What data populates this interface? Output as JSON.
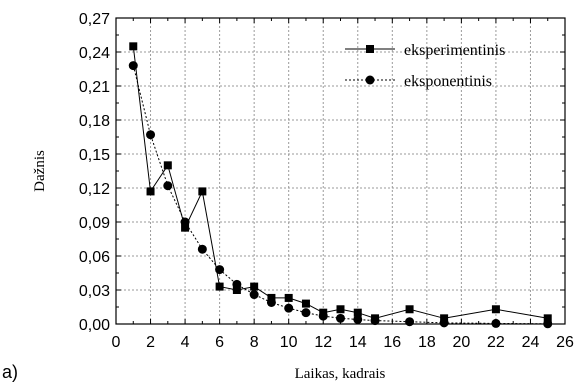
{
  "chart_data": {
    "type": "line",
    "panel_label": "a)",
    "xlabel": "Laikas, kadrais",
    "ylabel": "Dažnis",
    "xlim": [
      0,
      26
    ],
    "ylim": [
      0,
      0.27
    ],
    "x_ticks": [
      "0",
      "2",
      "4",
      "6",
      "8",
      "10",
      "12",
      "14",
      "16",
      "18",
      "20",
      "22",
      "24",
      "26"
    ],
    "y_ticks": [
      "0,00",
      "0,03",
      "0,06",
      "0,09",
      "0,12",
      "0,15",
      "0,18",
      "0,21",
      "0,24",
      "0,27"
    ],
    "grid": true,
    "legend_position": "top-right",
    "series": [
      {
        "name": "eksperimentinis",
        "line_style": "solid",
        "marker": "square",
        "x": [
          1,
          2,
          3,
          4,
          5,
          6,
          7,
          8,
          9,
          10,
          11,
          12,
          13,
          14,
          15,
          17,
          19,
          22,
          25
        ],
        "y": [
          0.245,
          0.117,
          0.14,
          0.085,
          0.117,
          0.033,
          0.03,
          0.033,
          0.023,
          0.023,
          0.018,
          0.01,
          0.013,
          0.01,
          0.005,
          0.013,
          0.005,
          0.013,
          0.005
        ]
      },
      {
        "name": "eksponentinis",
        "line_style": "dashed",
        "marker": "circle",
        "x": [
          1,
          2,
          3,
          4,
          5,
          6,
          7,
          8,
          9,
          10,
          11,
          12,
          13,
          14,
          15,
          17,
          19,
          22,
          25
        ],
        "y": [
          0.228,
          0.167,
          0.122,
          0.09,
          0.066,
          0.048,
          0.035,
          0.026,
          0.019,
          0.014,
          0.01,
          0.007,
          0.005,
          0.004,
          0.003,
          0.002,
          0.001,
          0.0005,
          0.0002
        ]
      }
    ]
  }
}
